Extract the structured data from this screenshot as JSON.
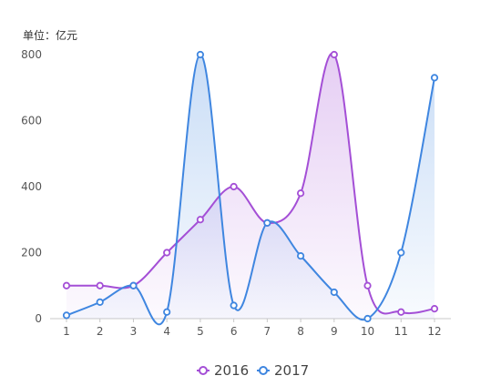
{
  "chart_data": {
    "type": "area",
    "unit_label": "单位：亿元",
    "x": [
      "1",
      "2",
      "3",
      "4",
      "5",
      "6",
      "7",
      "8",
      "9",
      "10",
      "11",
      "12"
    ],
    "ylim": [
      0,
      800
    ],
    "yticks": [
      0,
      200,
      400,
      600,
      800
    ],
    "grid": false,
    "legend_position": "bottom-center",
    "series": [
      {
        "name": "2016",
        "color": "#a44fd6",
        "values": [
          100,
          100,
          100,
          200,
          300,
          400,
          290,
          380,
          800,
          100,
          20,
          30
        ]
      },
      {
        "name": "2017",
        "color": "#3f86e0",
        "values": [
          10,
          50,
          100,
          20,
          800,
          40,
          290,
          190,
          80,
          0,
          200,
          730
        ]
      }
    ]
  }
}
